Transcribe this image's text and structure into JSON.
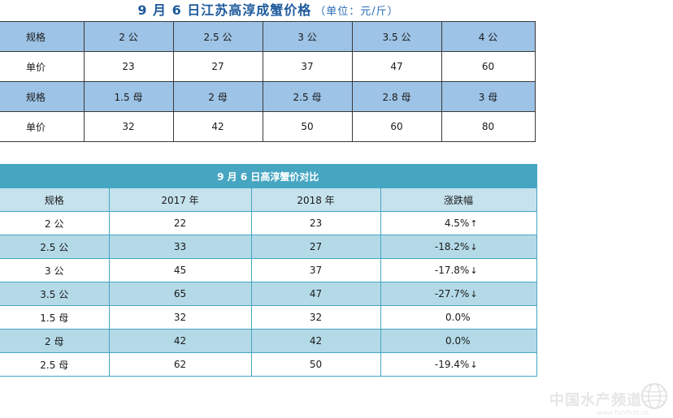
{
  "price_table": {
    "title": "9 月 6 日江苏高淳成蟹价格",
    "unit": "（单位：元/斤）",
    "rows": [
      [
        "规格",
        "2 公",
        "2.5 公",
        "3 公",
        "3.5 公",
        "4 公"
      ],
      [
        "单价",
        "23",
        "27",
        "37",
        "47",
        "60"
      ],
      [
        "规格",
        "1.5 母",
        "2 母",
        "2.5 母",
        "2.8 母",
        "3 母"
      ],
      [
        "单价",
        "32",
        "42",
        "50",
        "60",
        "80"
      ]
    ]
  },
  "compare_table": {
    "title": "9 月 6 日高淳蟹价对比",
    "headers": [
      "规格",
      "2017 年",
      "2018 年",
      "涨跌幅"
    ],
    "rows": [
      {
        "spec": "2 公",
        "y2017": "22",
        "y2018": "23",
        "change": "4.5%",
        "arrow": "↑"
      },
      {
        "spec": "2.5 公",
        "y2017": "33",
        "y2018": "27",
        "change": "-18.2%",
        "arrow": "↓"
      },
      {
        "spec": "3 公",
        "y2017": "45",
        "y2018": "37",
        "change": "-17.8%",
        "arrow": "↓"
      },
      {
        "spec": "3.5 公",
        "y2017": "65",
        "y2018": "47",
        "change": "-27.7%",
        "arrow": "↓"
      },
      {
        "spec": "1.5 母",
        "y2017": "32",
        "y2018": "32",
        "change": "0.0%",
        "arrow": ""
      },
      {
        "spec": "2 母",
        "y2017": "42",
        "y2018": "42",
        "change": "0.0%",
        "arrow": ""
      },
      {
        "spec": "2.5 母",
        "y2017": "62",
        "y2018": "50",
        "change": "-19.4%",
        "arrow": "↓"
      }
    ]
  },
  "watermark": {
    "text": "中国水产频道",
    "url": "www.fishfirst.cn",
    "icon": "globe-icon"
  }
}
